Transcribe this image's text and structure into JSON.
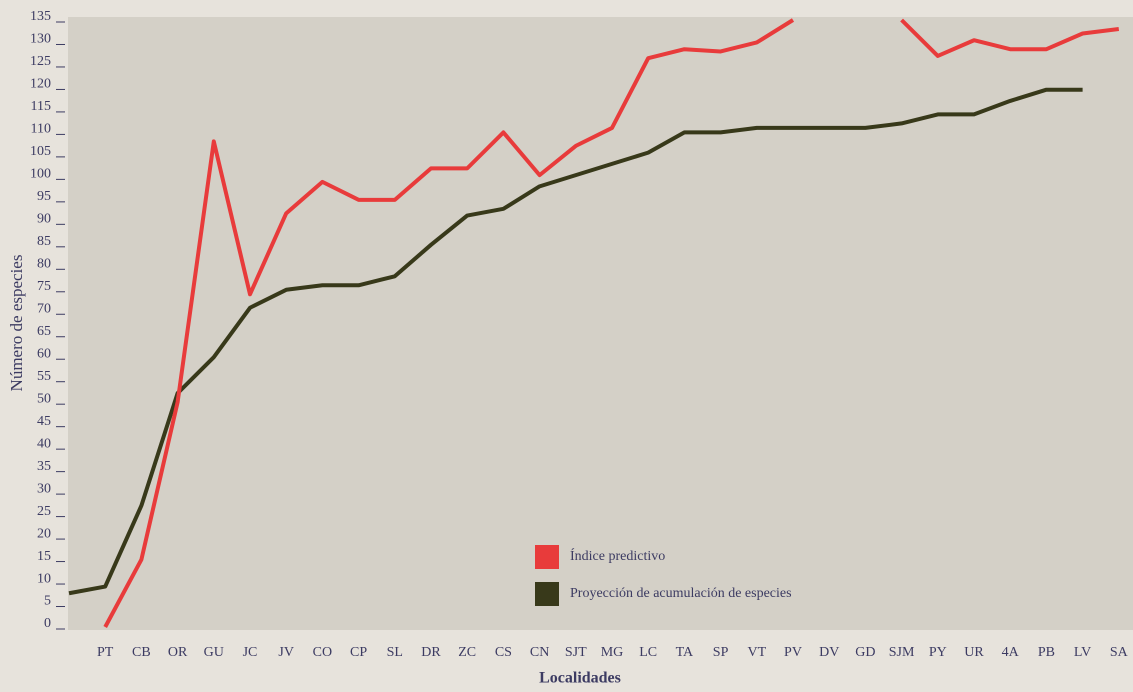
{
  "chart_data": {
    "type": "line",
    "xlabel": "Localidades",
    "ylabel": "Número de especies",
    "categories": [
      null,
      "PT",
      "CB",
      "OR",
      "GU",
      "JC",
      "JV",
      "CO",
      "CP",
      "SL",
      "DR",
      "ZC",
      "CS",
      "CN",
      "SJT",
      "MG",
      "LC",
      "TA",
      "SP",
      "VT",
      "PV",
      "DV",
      "GD",
      "SJM",
      "PY",
      "UR",
      "4A",
      "PB",
      "LV",
      "SA"
    ],
    "series": [
      {
        "name": "Índice predictivo",
        "color": "#e83b3b",
        "values": [
          null,
          0,
          15,
          50,
          108,
          74,
          92,
          99,
          95,
          95,
          102,
          102,
          110,
          100.5,
          107,
          111,
          126.5,
          128.5,
          128,
          130,
          135,
          null,
          null,
          135,
          127,
          130.5,
          128.5,
          128.5,
          132,
          133
        ]
      },
      {
        "name": "Proyección de acumulación de especies",
        "color": "#38391a",
        "values": [
          7.5,
          9,
          27,
          52,
          60,
          71,
          75,
          76,
          76,
          78,
          85,
          91.5,
          93,
          98,
          100.5,
          103,
          105.5,
          110,
          110,
          111,
          111,
          111,
          111,
          112,
          114,
          114,
          117,
          119.5,
          119.5,
          null
        ]
      }
    ],
    "ylim": [
      0,
      135
    ],
    "yticks": [
      0,
      5,
      10,
      15,
      20,
      25,
      30,
      35,
      40,
      45,
      50,
      55,
      60,
      65,
      70,
      75,
      80,
      85,
      90,
      95,
      100,
      105,
      110,
      115,
      120,
      125,
      130,
      135
    ]
  }
}
